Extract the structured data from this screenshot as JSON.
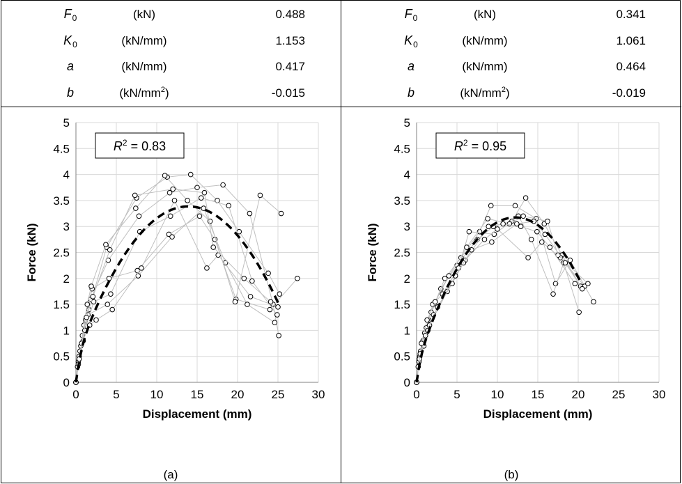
{
  "tables": [
    {
      "rows": [
        {
          "symbol": "F",
          "sub": "0",
          "unit": "(kN)",
          "sup": "",
          "value": "0.488"
        },
        {
          "symbol": "K",
          "sub": "0",
          "unit": "(kN/mm)",
          "sup": "",
          "value": "1.153"
        },
        {
          "symbol": "a",
          "sub": "",
          "unit": "(kN/mm)",
          "sup": "",
          "value": "0.417"
        },
        {
          "symbol": "b",
          "sub": "",
          "unit": "(kN/mm",
          "sup": "2",
          "value": "-0.015"
        }
      ]
    },
    {
      "rows": [
        {
          "symbol": "F",
          "sub": "0",
          "unit": "(kN)",
          "sup": "",
          "value": "0.341"
        },
        {
          "symbol": "K",
          "sub": "0",
          "unit": "(kN/mm)",
          "sup": "",
          "value": "1.061"
        },
        {
          "symbol": "a",
          "sub": "",
          "unit": "(kN/mm)",
          "sup": "",
          "value": "0.464"
        },
        {
          "symbol": "b",
          "sub": "",
          "unit": "(kN/mm",
          "sup": "2",
          "value": "-0.019"
        }
      ]
    }
  ],
  "chart_data": [
    {
      "type": "scatter",
      "caption": "(a)",
      "xlabel": "Displacement (mm)",
      "ylabel": "Force (kN)",
      "xlim": [
        0,
        30
      ],
      "ylim": [
        0,
        5
      ],
      "xticks": [
        0,
        5,
        10,
        15,
        20,
        25,
        30
      ],
      "yticks": [
        0,
        0.5,
        1,
        1.5,
        2,
        2.5,
        3,
        3.5,
        4,
        4.5,
        5
      ],
      "grid": true,
      "annotation": {
        "label": "R",
        "sup": "2",
        "text": " = 0.83"
      },
      "fit": {
        "F0": 0.488,
        "K0": 1.153,
        "a": 0.417,
        "b": -0.015,
        "x_end": 25.2
      },
      "series": [
        {
          "points": [
            [
              0,
              0
            ],
            [
              0.3,
              0.4
            ],
            [
              0.8,
              0.9
            ],
            [
              1.6,
              1.4
            ],
            [
              3.8,
              2.6
            ],
            [
              7.5,
              3.55
            ],
            [
              11.3,
              3.95
            ],
            [
              14.2,
              4.0
            ],
            [
              17.5,
              3.5
            ],
            [
              20.2,
              2.9
            ],
            [
              23.8,
              2.1
            ],
            [
              25.2,
              1.7
            ]
          ]
        },
        {
          "points": [
            [
              0,
              0
            ],
            [
              0.4,
              0.5
            ],
            [
              1,
              1.1
            ],
            [
              1.8,
              1.6
            ],
            [
              4,
              2.35
            ],
            [
              7.8,
              3.2
            ],
            [
              11.6,
              3.65
            ],
            [
              15,
              3.75
            ],
            [
              18.2,
              3.8
            ],
            [
              21.5,
              3.25
            ],
            [
              24.4,
              1.5
            ],
            [
              25.1,
              0.9
            ]
          ]
        },
        {
          "points": [
            [
              0,
              0
            ],
            [
              0.5,
              0.6
            ],
            [
              1.2,
              1.2
            ],
            [
              2,
              1.8
            ],
            [
              4.1,
              2.0
            ],
            [
              7.6,
              2.15
            ],
            [
              11.5,
              2.85
            ],
            [
              15.3,
              3.2
            ],
            [
              17.2,
              2.75
            ],
            [
              19.8,
              1.6
            ],
            [
              24,
              1.4
            ],
            [
              27.4,
              2.0
            ]
          ]
        },
        {
          "points": [
            [
              0,
              0
            ],
            [
              0.2,
              0.3
            ],
            [
              0.9,
              0.8
            ],
            [
              1.5,
              1.3
            ],
            [
              3.9,
              1.5
            ],
            [
              7.7,
              2.05
            ],
            [
              11.9,
              2.8
            ],
            [
              15.8,
              3.35
            ],
            [
              18.5,
              2.3
            ],
            [
              21.2,
              1.5
            ],
            [
              24.6,
              1.15
            ]
          ]
        },
        {
          "points": [
            [
              0,
              0
            ],
            [
              0.6,
              0.7
            ],
            [
              1.4,
              1.5
            ],
            [
              1.9,
              1.85
            ],
            [
              3.7,
              2.65
            ],
            [
              7.4,
              3.35
            ],
            [
              11,
              3.98
            ],
            [
              13.8,
              3.5
            ],
            [
              16.6,
              3.1
            ],
            [
              19.7,
              1.55
            ],
            [
              22.8,
              3.6
            ],
            [
              25.4,
              3.25
            ]
          ]
        },
        {
          "points": [
            [
              0,
              0
            ],
            [
              0.3,
              0.35
            ],
            [
              1.1,
              1.0
            ],
            [
              2.2,
              1.55
            ],
            [
              4.3,
              1.7
            ],
            [
              7.9,
              2.9
            ],
            [
              11.7,
              3.2
            ],
            [
              15.5,
              3.55
            ],
            [
              18.9,
              3.4
            ],
            [
              21.8,
              1.95
            ],
            [
              24.9,
              1.3
            ]
          ]
        },
        {
          "points": [
            [
              0,
              0
            ],
            [
              0.7,
              0.75
            ],
            [
              1.7,
              1.1
            ],
            [
              2.5,
              1.2
            ],
            [
              4.5,
              1.4
            ],
            [
              8.1,
              2.2
            ],
            [
              12.2,
              3.5
            ],
            [
              16.2,
              2.2
            ],
            [
              17.6,
              2.45
            ],
            [
              21.6,
              1.65
            ],
            [
              25,
              1.45
            ]
          ]
        },
        {
          "points": [
            [
              0,
              0
            ],
            [
              0.4,
              0.45
            ],
            [
              1.3,
              1.25
            ],
            [
              2.1,
              1.65
            ],
            [
              4.2,
              2.55
            ],
            [
              7.3,
              3.6
            ],
            [
              12,
              3.72
            ],
            [
              15.9,
              3.65
            ],
            [
              17,
              2.6
            ],
            [
              20.8,
              2.0
            ],
            [
              24.1,
              1.55
            ]
          ]
        }
      ]
    },
    {
      "type": "scatter",
      "caption": "(b)",
      "xlabel": "Displacement (mm)",
      "ylabel": "Force (kN)",
      "xlim": [
        0,
        30
      ],
      "ylim": [
        0,
        5
      ],
      "xticks": [
        0,
        5,
        10,
        15,
        20,
        25,
        30
      ],
      "yticks": [
        0,
        0.5,
        1,
        1.5,
        2,
        2.5,
        3,
        3.5,
        4,
        4.5,
        5
      ],
      "grid": true,
      "annotation": {
        "label": "R",
        "sup": "2",
        "text": " = 0.95"
      },
      "fit": {
        "F0": 0.341,
        "K0": 1.061,
        "a": 0.464,
        "b": -0.019,
        "x_end": 20.3
      },
      "series": [
        {
          "points": [
            [
              0,
              0
            ],
            [
              0.3,
              0.4
            ],
            [
              0.8,
              0.8
            ],
            [
              1.5,
              1.2
            ],
            [
              3,
              1.8
            ],
            [
              5,
              2.25
            ],
            [
              7.5,
              2.75
            ],
            [
              9.5,
              3.0
            ],
            [
              11.8,
              3.1
            ],
            [
              13.5,
              3.55
            ],
            [
              15.8,
              3.05
            ],
            [
              18,
              2.45
            ],
            [
              20.3,
              1.85
            ]
          ]
        },
        {
          "points": [
            [
              0,
              0
            ],
            [
              0.4,
              0.5
            ],
            [
              1,
              0.95
            ],
            [
              1.8,
              1.35
            ],
            [
              3.5,
              2.0
            ],
            [
              5.5,
              2.4
            ],
            [
              7.8,
              2.9
            ],
            [
              9.2,
              3.4
            ],
            [
              12.2,
              3.4
            ],
            [
              14.8,
              3.15
            ],
            [
              17.2,
              1.9
            ],
            [
              19,
              2.35
            ],
            [
              21.9,
              1.55
            ]
          ]
        },
        {
          "points": [
            [
              0,
              0
            ],
            [
              0.5,
              0.6
            ],
            [
              1.2,
              1.05
            ],
            [
              2,
              1.5
            ],
            [
              3.2,
              1.7
            ],
            [
              5.2,
              2.2
            ],
            [
              6.5,
              2.9
            ],
            [
              9.6,
              2.85
            ],
            [
              12.6,
              3.2
            ],
            [
              14.2,
              2.75
            ],
            [
              16.9,
              1.7
            ],
            [
              18.2,
              2.3
            ],
            [
              20.1,
              1.35
            ]
          ]
        },
        {
          "points": [
            [
              0,
              0
            ],
            [
              0.2,
              0.3
            ],
            [
              0.9,
              0.7
            ],
            [
              1.6,
              1.1
            ],
            [
              3.8,
              1.75
            ],
            [
              6,
              2.35
            ],
            [
              8.4,
              2.75
            ],
            [
              10,
              2.95
            ],
            [
              13.8,
              2.4
            ],
            [
              15.5,
              2.7
            ],
            [
              17.8,
              2.4
            ],
            [
              20.8,
              1.85
            ]
          ]
        },
        {
          "points": [
            [
              0,
              0
            ],
            [
              0.6,
              0.75
            ],
            [
              1.3,
              1.2
            ],
            [
              2.3,
              1.55
            ],
            [
              4,
              2.05
            ],
            [
              6.2,
              2.6
            ],
            [
              8.8,
              3.15
            ],
            [
              11.5,
              3.05
            ],
            [
              13.2,
              3.2
            ],
            [
              16.2,
              3.1
            ],
            [
              17.5,
              2.45
            ],
            [
              21.2,
              1.9
            ]
          ]
        },
        {
          "points": [
            [
              0,
              0
            ],
            [
              0.35,
              0.45
            ],
            [
              1.1,
              0.9
            ],
            [
              2.1,
              1.3
            ],
            [
              4.4,
              1.9
            ],
            [
              5.8,
              2.3
            ],
            [
              8.9,
              3.0
            ],
            [
              10.7,
              3.05
            ],
            [
              12.9,
              3.0
            ],
            [
              14.9,
              2.9
            ],
            [
              16.5,
              2.6
            ],
            [
              19.6,
              1.9
            ]
          ]
        },
        {
          "points": [
            [
              0,
              0
            ],
            [
              0.45,
              0.55
            ],
            [
              1.4,
              1.0
            ],
            [
              2.6,
              1.45
            ],
            [
              4.8,
              2.05
            ],
            [
              6.8,
              2.55
            ],
            [
              9.3,
              2.7
            ],
            [
              12.4,
              3.05
            ],
            [
              14.5,
              3.1
            ],
            [
              15.9,
              2.85
            ],
            [
              18.4,
              2.3
            ],
            [
              20.5,
              1.8
            ]
          ]
        }
      ]
    }
  ]
}
